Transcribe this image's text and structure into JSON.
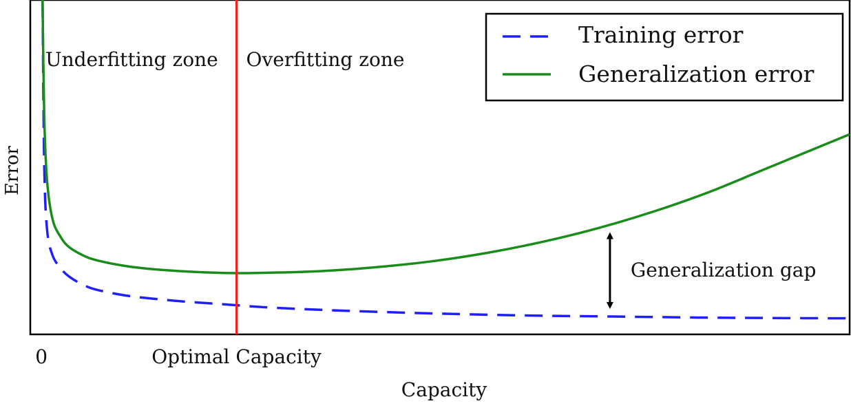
{
  "chart_data": {
    "type": "line",
    "title": "",
    "xlabel": "Capacity",
    "ylabel": "Error",
    "grid": false,
    "legend_placement": "top-right",
    "x_ticks": [
      {
        "x": 0,
        "label": "0"
      },
      {
        "x": 3.5,
        "label": "Optimal Capacity"
      }
    ],
    "xlim": [
      -0.2,
      14.5
    ],
    "ylim": [
      0,
      10
    ],
    "series": [
      {
        "name": "Training error",
        "color": "#1f1fff",
        "style": "dashed",
        "x": [
          0.02,
          0.05,
          0.1,
          0.2,
          0.35,
          0.5,
          0.75,
          1.0,
          1.5,
          2.0,
          2.5,
          3.0,
          3.5,
          4.0,
          5.0,
          6.0,
          7.0,
          8.0,
          9.0,
          10.0,
          11.0,
          12.0,
          13.0,
          14.5
        ],
        "values": [
          10.0,
          5.0,
          3.0,
          2.2,
          1.8,
          1.55,
          1.3,
          1.15,
          0.98,
          0.88,
          0.8,
          0.74,
          0.68,
          0.62,
          0.54,
          0.48,
          0.43,
          0.39,
          0.36,
          0.34,
          0.32,
          0.3,
          0.29,
          0.28
        ]
      },
      {
        "name": "Generalization error",
        "color": "#1a8c1a",
        "style": "solid",
        "x": [
          0.02,
          0.05,
          0.1,
          0.2,
          0.35,
          0.5,
          0.75,
          1.0,
          1.5,
          2.0,
          2.5,
          3.0,
          3.5,
          4.0,
          5.0,
          6.0,
          7.0,
          8.0,
          9.0,
          10.0,
          11.0,
          12.0,
          13.0,
          14.5
        ],
        "values": [
          10.0,
          6.5,
          4.5,
          3.3,
          2.75,
          2.45,
          2.2,
          2.05,
          1.88,
          1.78,
          1.72,
          1.68,
          1.66,
          1.67,
          1.72,
          1.84,
          2.02,
          2.28,
          2.62,
          3.04,
          3.55,
          4.15,
          4.85,
          5.9
        ]
      }
    ],
    "vertical_line": {
      "x": 3.5,
      "color": "#ff1a1a"
    },
    "annotations": {
      "underfitting": "Underfitting zone",
      "overfitting": "Overfitting zone",
      "gap": "Generalization gap",
      "gap_x": 10.2
    }
  }
}
